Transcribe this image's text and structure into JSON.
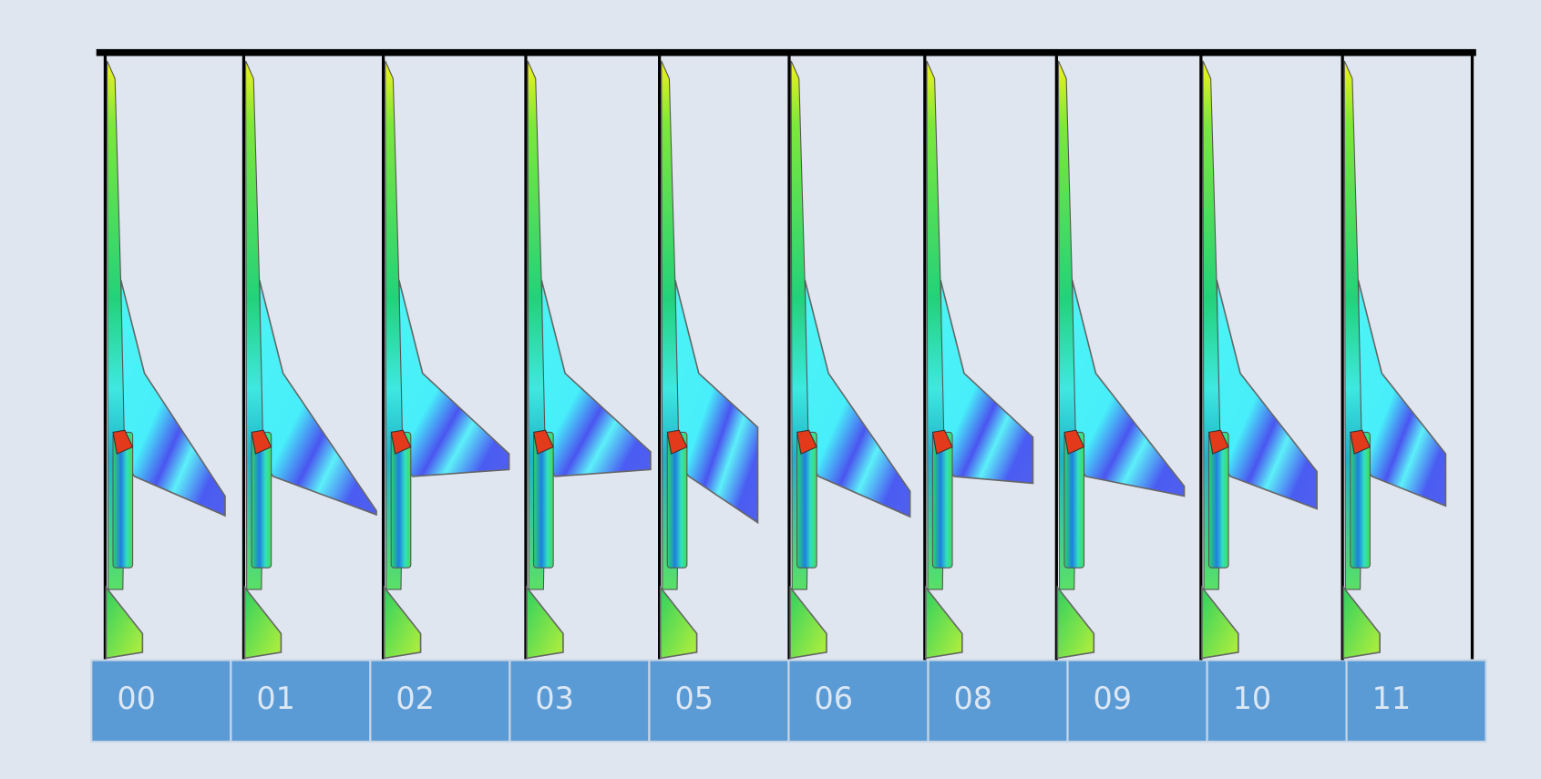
{
  "labels": [
    "00",
    "01",
    "02",
    "03",
    "05",
    "06",
    "08",
    "09",
    "10",
    "11"
  ]
}
